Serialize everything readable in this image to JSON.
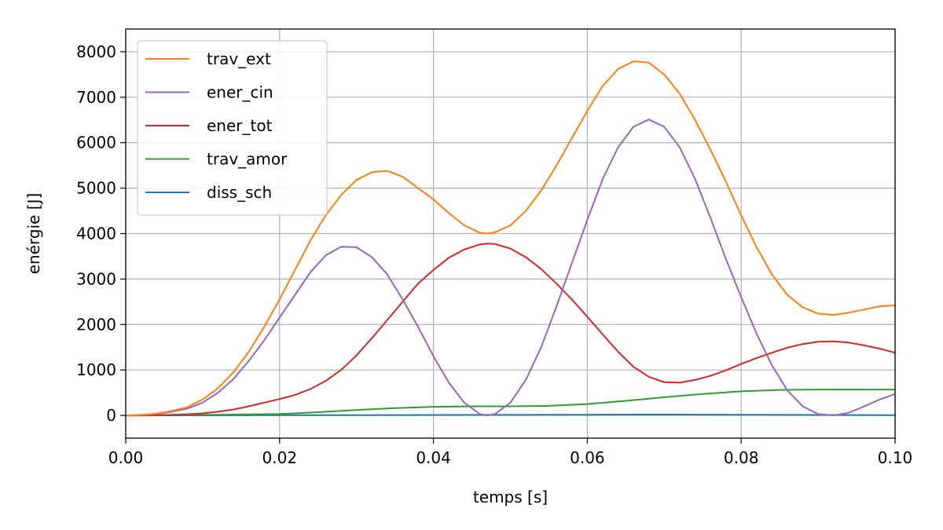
{
  "chart_data": {
    "type": "line",
    "xlabel": "temps [s]",
    "ylabel": "enérgie [J]",
    "xlim": [
      0.0,
      0.1
    ],
    "ylim": [
      -500,
      8500
    ],
    "xticks": [
      0.0,
      0.02,
      0.04,
      0.06,
      0.08,
      0.1
    ],
    "xtick_labels": [
      "0.00",
      "0.02",
      "0.04",
      "0.06",
      "0.08",
      "0.10"
    ],
    "yticks": [
      0,
      1000,
      2000,
      3000,
      4000,
      5000,
      6000,
      7000,
      8000
    ],
    "ytick_labels": [
      "0",
      "1000",
      "2000",
      "3000",
      "4000",
      "5000",
      "6000",
      "7000",
      "8000"
    ],
    "grid": true,
    "legend_position": "top-left",
    "series": [
      {
        "name": "trav_ext",
        "color": "#ff7f0e",
        "x": [
          0,
          0.002,
          0.004,
          0.006,
          0.008,
          0.01,
          0.012,
          0.014,
          0.016,
          0.018,
          0.02,
          0.022,
          0.024,
          0.026,
          0.028,
          0.03,
          0.032,
          0.034,
          0.036,
          0.038,
          0.04,
          0.042,
          0.044,
          0.046,
          0.047,
          0.048,
          0.05,
          0.052,
          0.054,
          0.056,
          0.058,
          0.06,
          0.062,
          0.064,
          0.066,
          0.068,
          0.07,
          0.072,
          0.074,
          0.076,
          0.078,
          0.08,
          0.082,
          0.084,
          0.086,
          0.088,
          0.09,
          0.092,
          0.094,
          0.096,
          0.098,
          0.1
        ],
        "y": [
          0,
          10,
          40,
          100,
          180,
          350,
          600,
          950,
          1400,
          1950,
          2550,
          3200,
          3850,
          4400,
          4850,
          5180,
          5350,
          5380,
          5250,
          5000,
          4750,
          4450,
          4180,
          4020,
          4000,
          4030,
          4180,
          4500,
          4950,
          5500,
          6100,
          6700,
          7250,
          7620,
          7790,
          7760,
          7500,
          7080,
          6500,
          5850,
          5150,
          4400,
          3700,
          3100,
          2650,
          2380,
          2240,
          2210,
          2260,
          2330,
          2400,
          2420
        ]
      },
      {
        "name": "ener_cin",
        "color": "#9467bd",
        "x": [
          0,
          0.002,
          0.004,
          0.006,
          0.008,
          0.01,
          0.012,
          0.014,
          0.016,
          0.018,
          0.02,
          0.022,
          0.024,
          0.026,
          0.028,
          0.03,
          0.032,
          0.034,
          0.036,
          0.038,
          0.04,
          0.042,
          0.044,
          0.046,
          0.047,
          0.048,
          0.05,
          0.052,
          0.054,
          0.056,
          0.058,
          0.06,
          0.062,
          0.064,
          0.066,
          0.068,
          0.07,
          0.072,
          0.074,
          0.076,
          0.078,
          0.08,
          0.082,
          0.084,
          0.086,
          0.088,
          0.09,
          0.092,
          0.094,
          0.096,
          0.098,
          0.1
        ],
        "y": [
          0,
          10,
          30,
          80,
          150,
          280,
          500,
          800,
          1200,
          1650,
          2150,
          2650,
          3150,
          3520,
          3710,
          3700,
          3480,
          3100,
          2550,
          1950,
          1300,
          720,
          280,
          30,
          0,
          30,
          280,
          780,
          1500,
          2400,
          3350,
          4300,
          5200,
          5900,
          6350,
          6510,
          6350,
          5900,
          5200,
          4350,
          3450,
          2600,
          1800,
          1100,
          550,
          200,
          30,
          0,
          60,
          200,
          350,
          470
        ]
      },
      {
        "name": "ener_tot",
        "color": "#d62728",
        "x": [
          0,
          0.002,
          0.004,
          0.006,
          0.008,
          0.01,
          0.012,
          0.014,
          0.016,
          0.018,
          0.02,
          0.022,
          0.024,
          0.026,
          0.028,
          0.03,
          0.032,
          0.034,
          0.036,
          0.038,
          0.04,
          0.042,
          0.044,
          0.046,
          0.047,
          0.048,
          0.05,
          0.052,
          0.054,
          0.056,
          0.058,
          0.06,
          0.062,
          0.064,
          0.066,
          0.068,
          0.07,
          0.072,
          0.074,
          0.076,
          0.078,
          0.08,
          0.082,
          0.084,
          0.086,
          0.088,
          0.09,
          0.092,
          0.094,
          0.096,
          0.098,
          0.1
        ],
        "y": [
          0,
          0,
          5,
          15,
          25,
          45,
          80,
          130,
          200,
          280,
          360,
          450,
          580,
          760,
          1000,
          1320,
          1700,
          2100,
          2500,
          2900,
          3200,
          3470,
          3650,
          3760,
          3780,
          3770,
          3670,
          3480,
          3220,
          2900,
          2550,
          2170,
          1780,
          1400,
          1070,
          850,
          730,
          720,
          780,
          870,
          990,
          1130,
          1260,
          1380,
          1490,
          1570,
          1620,
          1630,
          1600,
          1540,
          1470,
          1380
        ]
      },
      {
        "name": "trav_amor",
        "color": "#2ca02c",
        "x": [
          0,
          0.01,
          0.02,
          0.025,
          0.03,
          0.035,
          0.04,
          0.045,
          0.05,
          0.055,
          0.06,
          0.065,
          0.07,
          0.075,
          0.08,
          0.085,
          0.09,
          0.095,
          0.1
        ],
        "y": [
          0,
          10,
          30,
          70,
          120,
          160,
          190,
          200,
          200,
          210,
          250,
          320,
          400,
          470,
          530,
          560,
          570,
          570,
          570
        ]
      },
      {
        "name": "diss_sch",
        "color": "#1f77b4",
        "x": [
          0,
          0.02,
          0.04,
          0.06,
          0.07,
          0.08,
          0.09,
          0.1
        ],
        "y": [
          0,
          5,
          10,
          15,
          18,
          15,
          10,
          5
        ]
      }
    ]
  }
}
